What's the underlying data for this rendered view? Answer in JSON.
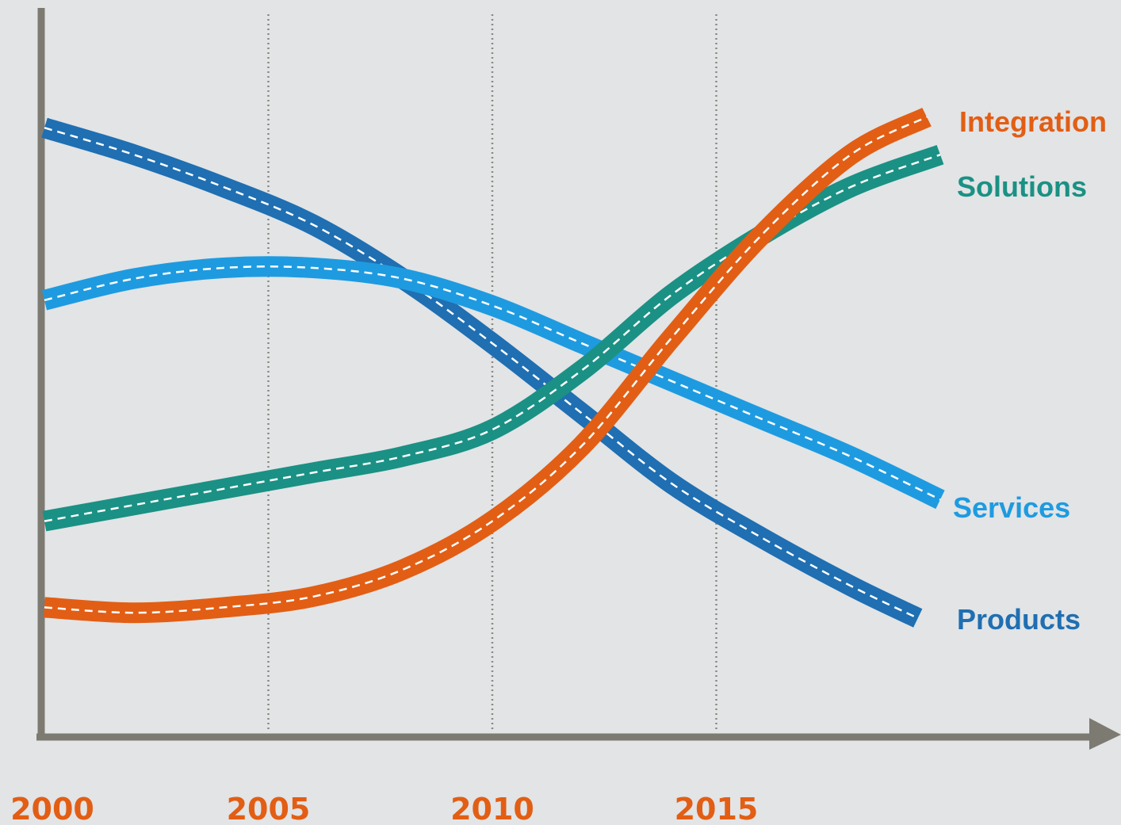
{
  "chart_data": {
    "type": "line",
    "title": "",
    "xlabel": "",
    "ylabel": "",
    "x_ticks": [
      "2000",
      "2005",
      "2010",
      "2015"
    ],
    "xlim": [
      2000,
      2020
    ],
    "ylim": [
      0,
      100
    ],
    "y_axis_labels": false,
    "grid": "vertical dotted lines at 2005, 2010, 2015",
    "legend": "labels at right end of each line",
    "series": [
      {
        "name": "Products",
        "color": "#1f6fb2",
        "x": [
          2000,
          2002,
          2004,
          2006,
          2008,
          2010,
          2012,
          2014,
          2016,
          2018,
          2019.5
        ],
        "y": [
          91,
          86,
          80,
          73,
          63,
          51,
          38,
          25,
          15,
          6,
          0
        ]
      },
      {
        "name": "Services",
        "color": "#1e9be0",
        "x": [
          2000,
          2002,
          2004,
          2006,
          2008,
          2010,
          2012,
          2014,
          2016,
          2018,
          2020
        ],
        "y": [
          59,
          63,
          65,
          65,
          63,
          58,
          51,
          44,
          37,
          30,
          22
        ]
      },
      {
        "name": "Solutions",
        "color": "#1a9184",
        "x": [
          2000,
          2002,
          2004,
          2006,
          2008,
          2010,
          2012,
          2014,
          2016,
          2018,
          2020
        ],
        "y": [
          18,
          21,
          24,
          27,
          30,
          35,
          46,
          60,
          71,
          80,
          86
        ]
      },
      {
        "name": "Integration",
        "color": "#e25e14",
        "x": [
          2000,
          2002,
          2004,
          2006,
          2008,
          2010,
          2012,
          2014,
          2016,
          2018,
          2019.7
        ],
        "y": [
          2,
          1,
          2,
          4,
          9,
          18,
          32,
          52,
          71,
          86,
          93
        ]
      }
    ]
  }
}
